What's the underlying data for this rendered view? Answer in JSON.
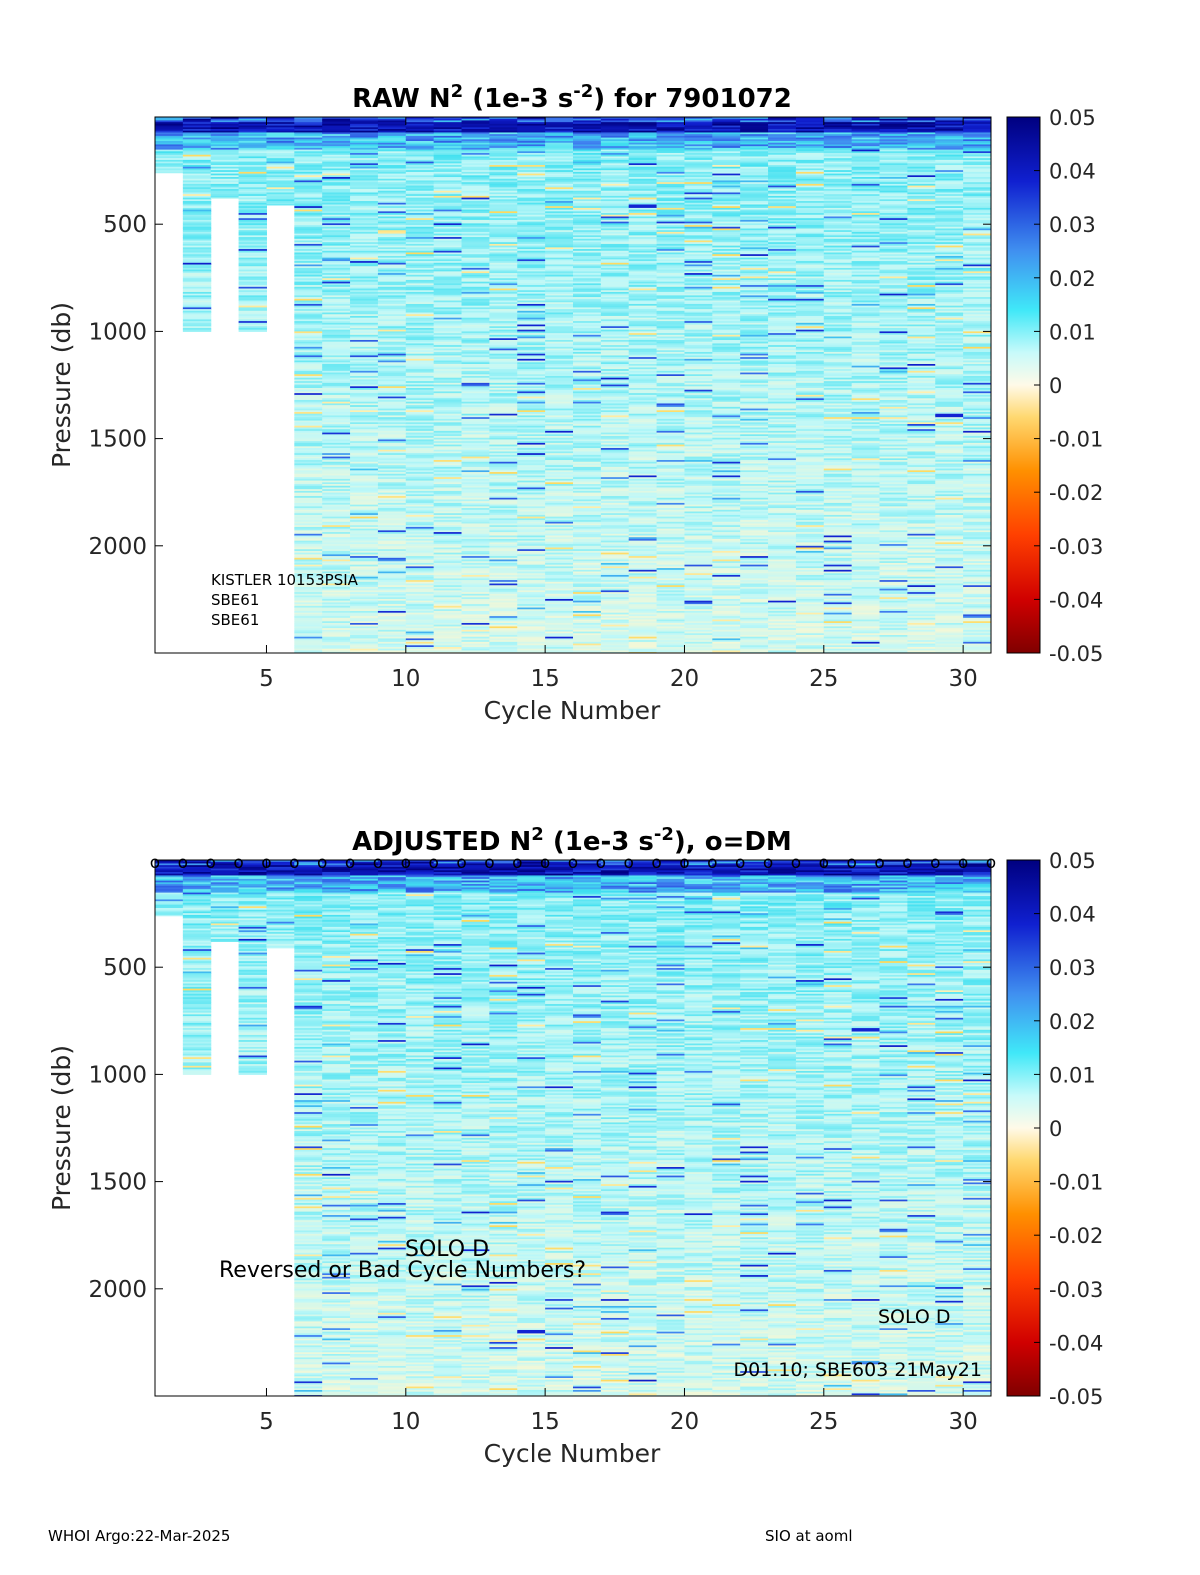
{
  "charts": [
    {
      "type": "heatmap",
      "title_main": "RAW N",
      "title_sup": "2",
      "title_units_a": " (1e-3 s",
      "title_units_sup": "-2",
      "title_tail": ") for 7901072",
      "xlabel": "Cycle Number",
      "ylabel": "Pressure (db)",
      "xlim": [
        1,
        31
      ],
      "ylim": [
        0,
        2500
      ],
      "y_reversed": true,
      "xticks": [
        5,
        10,
        15,
        20,
        25,
        30
      ],
      "yticks": [
        500,
        1000,
        1500,
        2000
      ],
      "colorbar": {
        "range": [
          -0.05,
          0.05
        ],
        "ticks": [
          "0.05",
          "0.04",
          "0.03",
          "0.02",
          "0.01",
          "0",
          "-0.01",
          "-0.02",
          "-0.03",
          "-0.04",
          "-0.05"
        ]
      },
      "colormap": [
        "#800000",
        "#e00000",
        "#ff6000",
        "#ffc000",
        "#fff8d0",
        "#bff8f8",
        "#40e0f0",
        "#4080f0",
        "#1020d0",
        "#000080"
      ],
      "profile_max_depth": [
        {
          "cycle": 1,
          "depth": 260
        },
        {
          "cycle": 2,
          "depth": 1000
        },
        {
          "cycle": 3,
          "depth": 380
        },
        {
          "cycle": 4,
          "depth": 1000
        },
        {
          "cycle": 5,
          "depth": 410
        }
      ],
      "full_profiles_from_cycle": 6,
      "full_depth": 2500,
      "annotations": [
        "KISTLER 10153PSIA",
        "SBE61",
        "SBE61"
      ],
      "dm_markers": false
    },
    {
      "type": "heatmap",
      "title_main": "ADJUSTED N",
      "title_sup": "2",
      "title_units_a": " (1e-3 s",
      "title_units_sup": "-2",
      "title_tail": "), o=DM",
      "xlabel": "Cycle Number",
      "ylabel": "Pressure (db)",
      "xlim": [
        1,
        31
      ],
      "ylim": [
        0,
        2500
      ],
      "y_reversed": true,
      "xticks": [
        5,
        10,
        15,
        20,
        25,
        30
      ],
      "yticks": [
        500,
        1000,
        1500,
        2000
      ],
      "colorbar": {
        "range": [
          -0.05,
          0.05
        ],
        "ticks": [
          "0.05",
          "0.04",
          "0.03",
          "0.02",
          "0.01",
          "0",
          "-0.01",
          "-0.02",
          "-0.03",
          "-0.04",
          "-0.05"
        ]
      },
      "colormap": [
        "#800000",
        "#e00000",
        "#ff6000",
        "#ffc000",
        "#fff8d0",
        "#bff8f8",
        "#40e0f0",
        "#4080f0",
        "#1020d0",
        "#000080"
      ],
      "profile_max_depth": [
        {
          "cycle": 1,
          "depth": 260
        },
        {
          "cycle": 2,
          "depth": 1000
        },
        {
          "cycle": 3,
          "depth": 380
        },
        {
          "cycle": 4,
          "depth": 1000
        },
        {
          "cycle": 5,
          "depth": 410
        }
      ],
      "full_profiles_from_cycle": 6,
      "full_depth": 2500,
      "annotations": [
        "SOLO D",
        "Reversed or Bad Cycle Numbers?",
        "SOLO D",
        "D01.10; SBE603 21May21"
      ],
      "dm_markers": true,
      "dm_marker_symbol": "o"
    }
  ],
  "footer": {
    "left": "WHOI Argo:22-Mar-2025",
    "right": "SIO at aoml"
  }
}
